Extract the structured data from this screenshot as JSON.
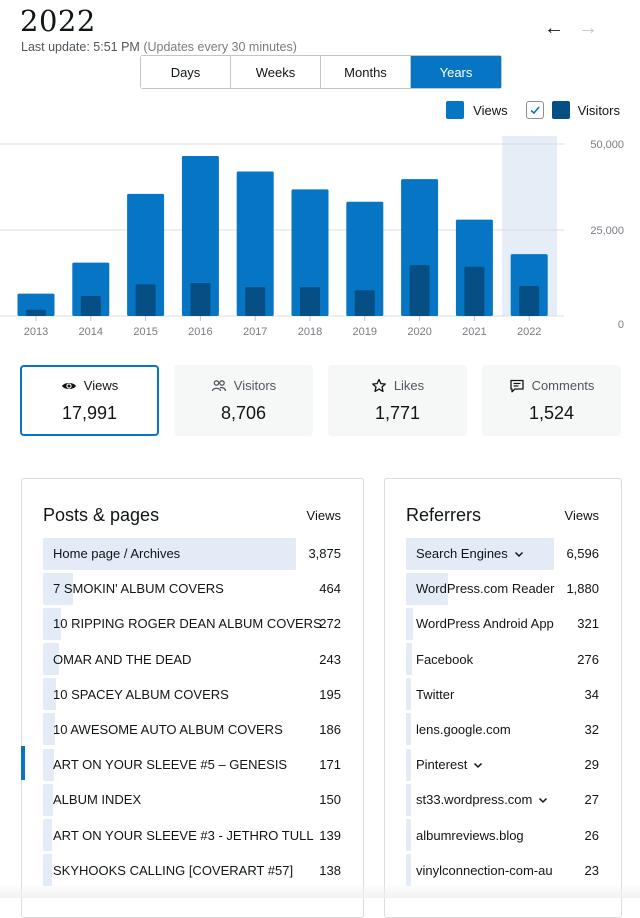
{
  "header": {
    "title": "2022",
    "last_update_label": "Last update: 5:51 PM",
    "update_frequency": "(Updates every 30 minutes)",
    "prev_arrow": "←",
    "next_arrow": "→"
  },
  "period_tabs": [
    {
      "label": "Days",
      "active": false
    },
    {
      "label": "Weeks",
      "active": false
    },
    {
      "label": "Months",
      "active": false
    },
    {
      "label": "Years",
      "active": true
    }
  ],
  "legend": {
    "views_label": "Views",
    "visitors_label": "Visitors",
    "visitors_checked": true
  },
  "colors": {
    "accent": "#0675c4",
    "visitors": "#064f84",
    "highlight": "#e5edf7"
  },
  "chart_data": {
    "type": "bar",
    "categories": [
      "2013",
      "2014",
      "2015",
      "2016",
      "2017",
      "2018",
      "2019",
      "2020",
      "2021",
      "2022"
    ],
    "series": [
      {
        "name": "Views",
        "values": [
          6500,
          15500,
          35500,
          46500,
          42000,
          36800,
          33200,
          39800,
          28000,
          17991
        ]
      },
      {
        "name": "Visitors",
        "values": [
          1800,
          5800,
          9200,
          9600,
          8400,
          8400,
          7500,
          14800,
          14300,
          8706
        ]
      }
    ],
    "ylim": [
      0,
      50000
    ],
    "y_ticks": [
      "50,000",
      "25,000",
      "0"
    ],
    "highlighted_category": "2022"
  },
  "summary_cards": [
    {
      "label": "Views",
      "value": "17,991",
      "icon": "eye-icon",
      "active": true
    },
    {
      "label": "Visitors",
      "value": "8,706",
      "icon": "people-icon",
      "active": false
    },
    {
      "label": "Likes",
      "value": "1,771",
      "icon": "star-icon",
      "active": false
    },
    {
      "label": "Comments",
      "value": "1,524",
      "icon": "comment-icon",
      "active": false
    }
  ],
  "posts": {
    "title": "Posts & pages",
    "column": "Views",
    "max": 3875,
    "items": [
      {
        "label": "Home page / Archives",
        "value": "3,875",
        "n": 3875
      },
      {
        "label": "7 SMOKIN' ALBUM COVERS",
        "value": "464",
        "n": 464
      },
      {
        "label": "10 RIPPING ROGER DEAN ALBUM COVERS",
        "value": "272",
        "n": 272
      },
      {
        "label": "OMAR AND THE DEAD",
        "value": "243",
        "n": 243
      },
      {
        "label": "10 SPACEY ALBUM COVERS",
        "value": "195",
        "n": 195
      },
      {
        "label": "10 AWESOME AUTO ALBUM COVERS",
        "value": "186",
        "n": 186
      },
      {
        "label": "ART ON YOUR SLEEVE #5 – GENESIS",
        "value": "171",
        "n": 171
      },
      {
        "label": "ALBUM INDEX",
        "value": "150",
        "n": 150
      },
      {
        "label": "ART ON YOUR SLEEVE #3 - JETHRO TULL",
        "value": "139",
        "n": 139
      },
      {
        "label": "SKYHOOKS CALLING [COVERART #57]",
        "value": "138",
        "n": 138
      }
    ]
  },
  "referrers": {
    "title": "Referrers",
    "column": "Views",
    "max": 6596,
    "items": [
      {
        "label": "Search Engines",
        "value": "6,596",
        "n": 6596,
        "expandable": true
      },
      {
        "label": "WordPress.com Reader",
        "value": "1,880",
        "n": 1880,
        "expandable": false
      },
      {
        "label": "WordPress Android App",
        "value": "321",
        "n": 321,
        "expandable": false
      },
      {
        "label": "Facebook",
        "value": "276",
        "n": 276,
        "expandable": false
      },
      {
        "label": "Twitter",
        "value": "34",
        "n": 34,
        "expandable": false
      },
      {
        "label": "lens.google.com",
        "value": "32",
        "n": 32,
        "expandable": false
      },
      {
        "label": "Pinterest",
        "value": "29",
        "n": 29,
        "expandable": true
      },
      {
        "label": "st33.wordpress.com",
        "value": "27",
        "n": 27,
        "expandable": true
      },
      {
        "label": "albumreviews.blog",
        "value": "26",
        "n": 26,
        "expandable": false
      },
      {
        "label": "vinylconnection-com-au",
        "value": "23",
        "n": 23,
        "expandable": false
      }
    ]
  }
}
